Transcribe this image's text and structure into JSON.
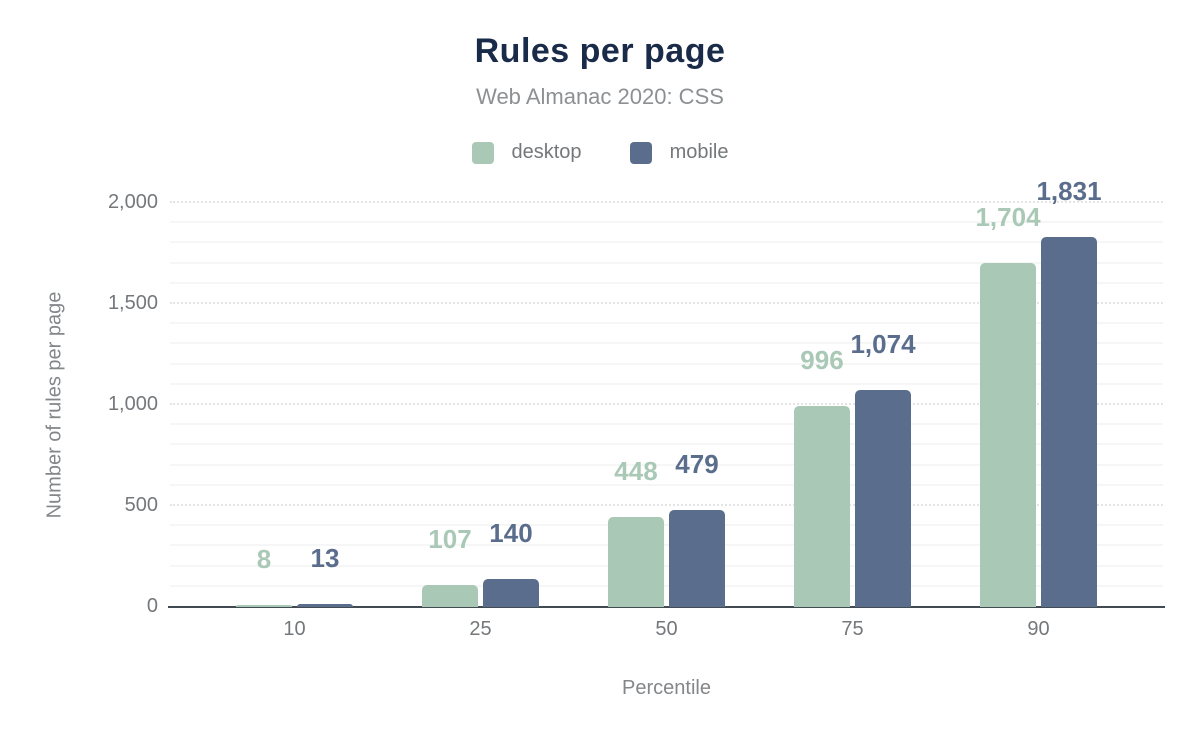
{
  "chart_data": {
    "type": "bar",
    "title": "Rules per page",
    "subtitle": "Web Almanac 2020: CSS",
    "xlabel": "Percentile",
    "ylabel": "Number of rules per page",
    "categories": [
      "10",
      "25",
      "50",
      "75",
      "90"
    ],
    "series": [
      {
        "name": "desktop",
        "color": "#a9c8b6",
        "values": [
          8,
          107,
          448,
          996,
          1704
        ],
        "labels": [
          "8",
          "107",
          "448",
          "996",
          "1,704"
        ]
      },
      {
        "name": "mobile",
        "color": "#5a6d8c",
        "values": [
          13,
          140,
          479,
          1074,
          1831
        ],
        "labels": [
          "13",
          "140",
          "479",
          "1,074",
          "1,831"
        ]
      }
    ],
    "ylim": [
      0,
      2000
    ],
    "yticks": [
      {
        "value": 0,
        "label": "0"
      },
      {
        "value": 500,
        "label": "500"
      },
      {
        "value": 1000,
        "label": "1,000"
      },
      {
        "value": 1500,
        "label": "1,500"
      },
      {
        "value": 2000,
        "label": "2,000"
      }
    ],
    "grid": {
      "minor_step": 100,
      "major_step": 500
    },
    "legend_position": "top",
    "colors": {
      "title": "#1a2b49",
      "subtitle": "#8d9093",
      "tick_text": "#75787b",
      "axis_line": "#424a52",
      "minor_grid": "#f6f6f6",
      "major_grid": "#e4e4e4"
    }
  }
}
